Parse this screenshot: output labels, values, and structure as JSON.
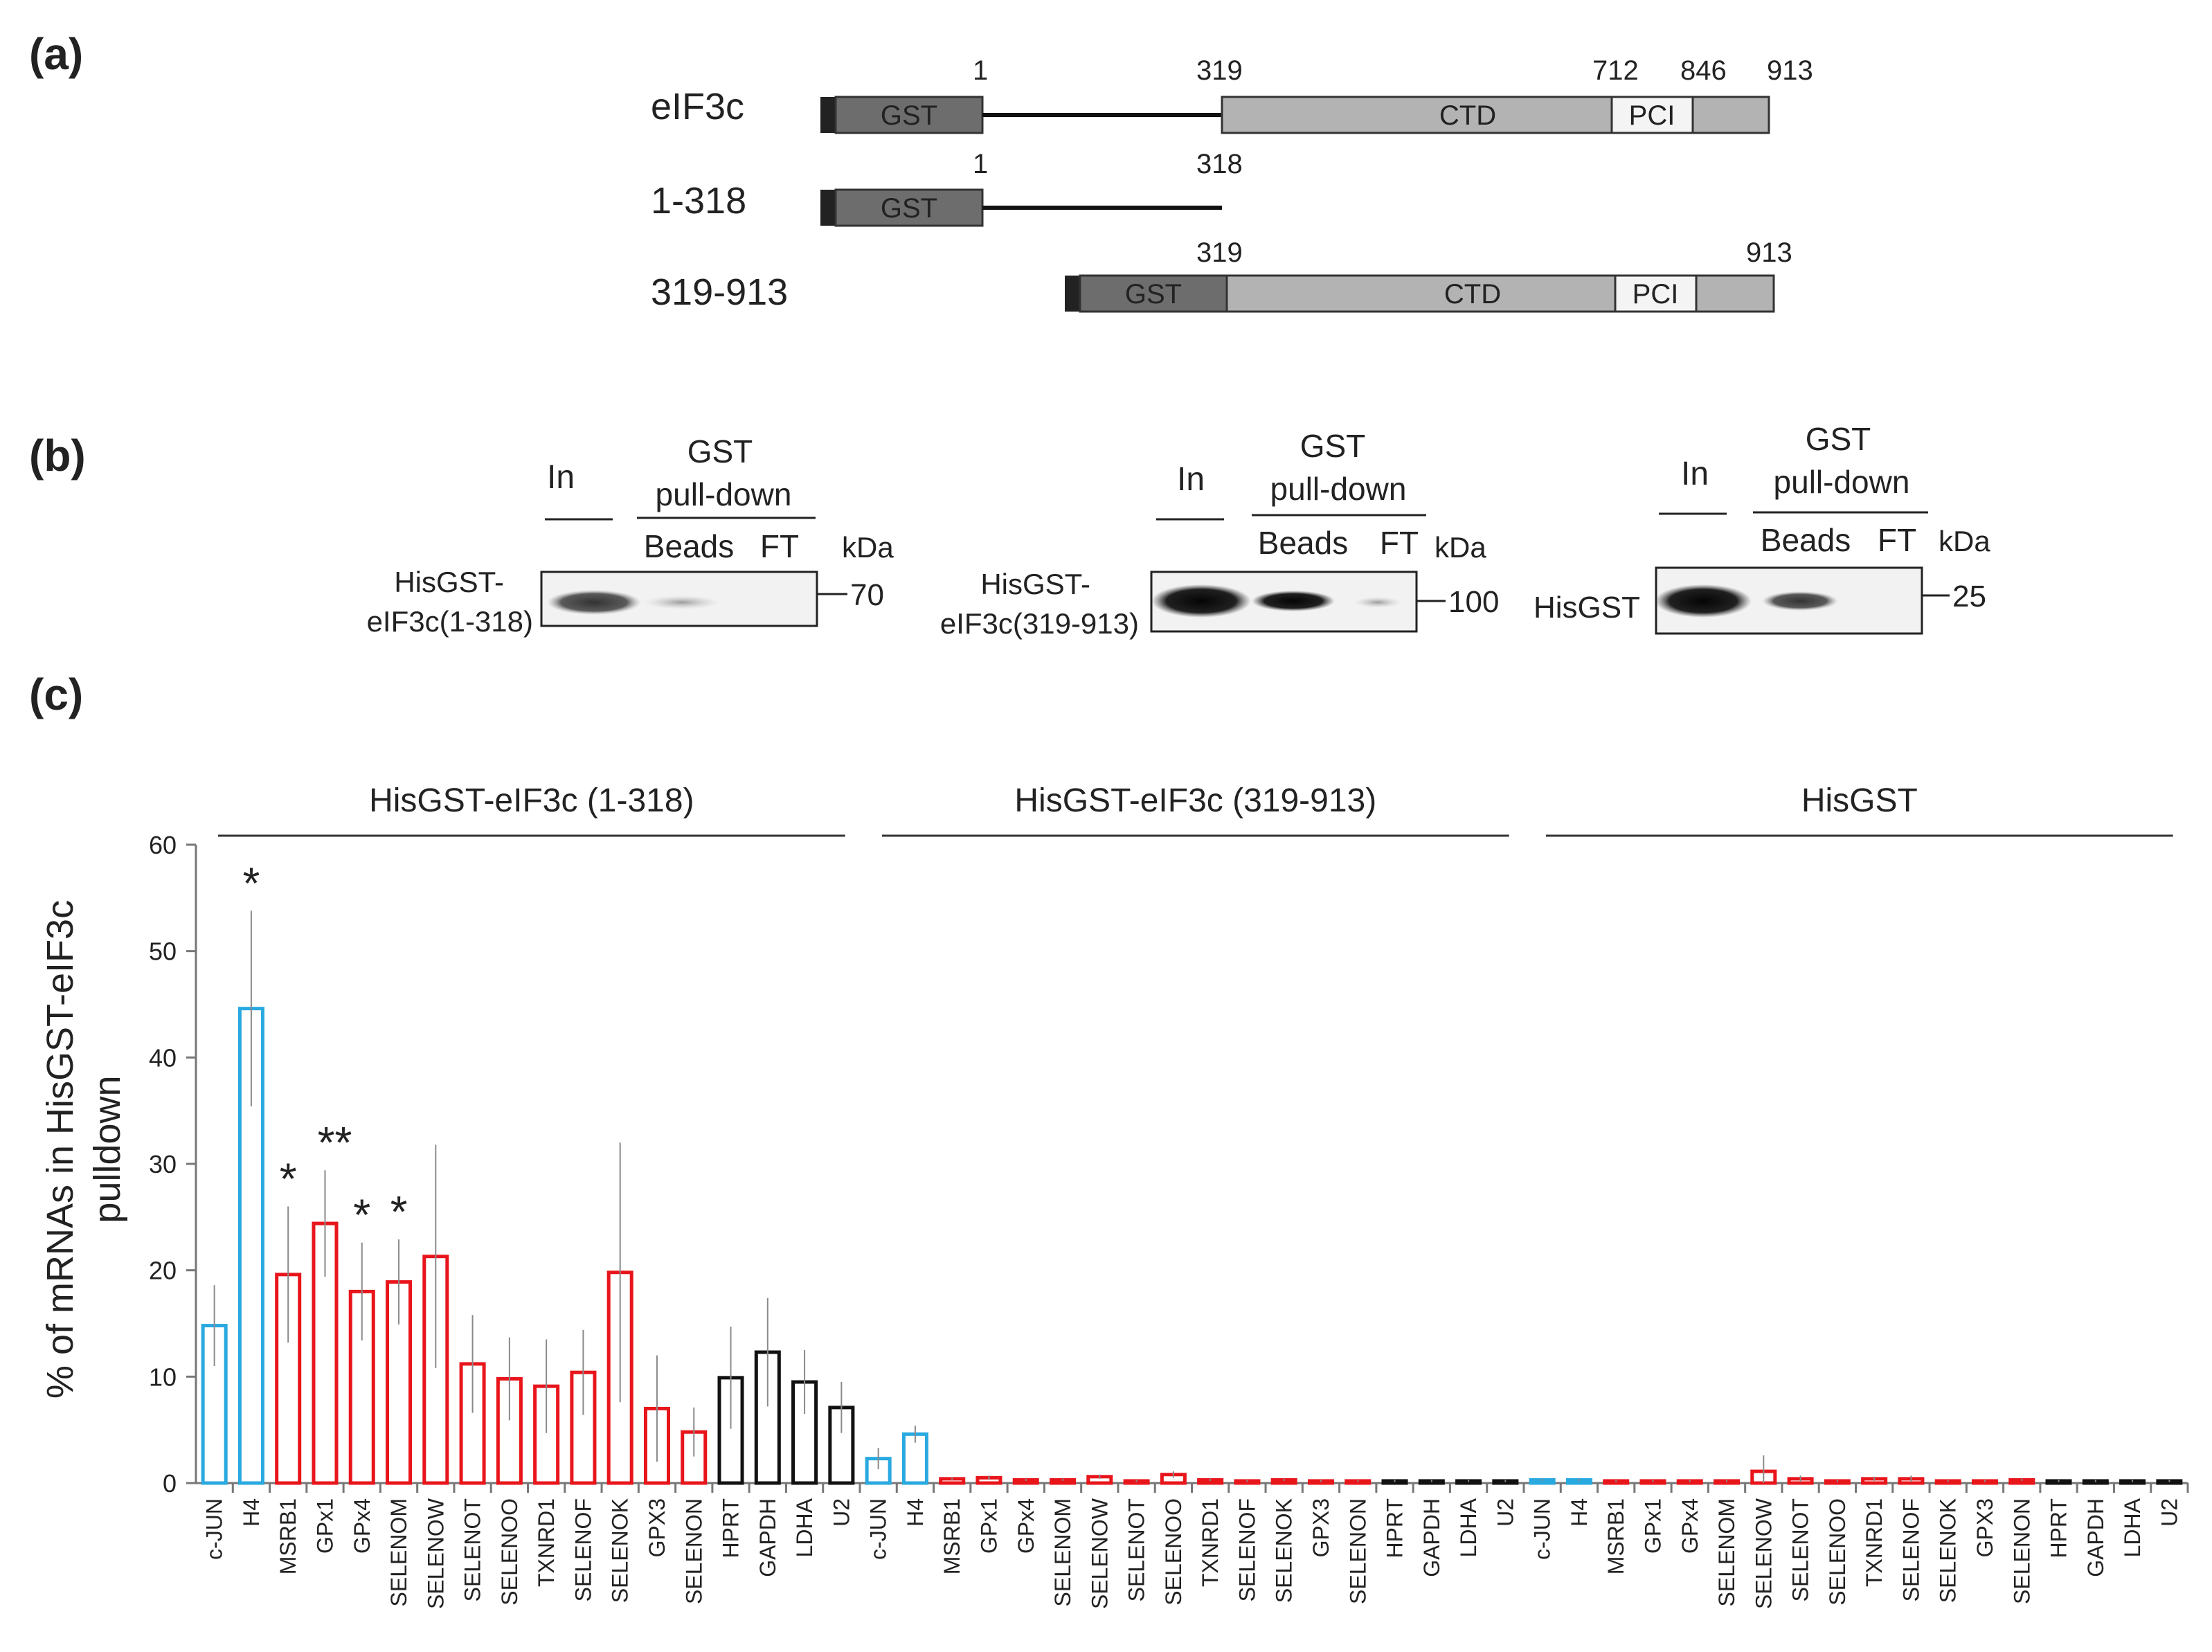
{
  "panels": {
    "a": "(a)",
    "b": "(b)",
    "c": "(c)"
  },
  "panel_a": {
    "constructs": [
      {
        "name": "eIF3c",
        "positions": [
          "1",
          "319",
          "712",
          "846",
          "913"
        ],
        "domains": [
          "GST",
          "CTD",
          "PCI"
        ]
      },
      {
        "name": "1-318",
        "positions": [
          "1",
          "318"
        ],
        "domains": [
          "GST"
        ]
      },
      {
        "name": "319-913",
        "positions": [
          "319",
          "913"
        ],
        "domains": [
          "GST",
          "CTD",
          "PCI"
        ]
      }
    ]
  },
  "panel_b": {
    "kda_label": "kDa",
    "blots": [
      {
        "protein_line1": "HisGST-",
        "protein_line2": "eIF3c(1-318)",
        "input_label": "In",
        "pulldown_line1": "GST",
        "pulldown_line2": "pull-down",
        "beads_label": "Beads",
        "ft_label": "FT",
        "marker": "70"
      },
      {
        "protein_line1": "HisGST-",
        "protein_line2": "eIF3c(319-913)",
        "input_label": "In",
        "pulldown_line1": "GST",
        "pulldown_line2": "pull-down",
        "beads_label": "Beads",
        "ft_label": "FT",
        "marker": "100"
      },
      {
        "protein_line1": "HisGST",
        "protein_line2": "",
        "input_label": "In",
        "pulldown_line1": "GST",
        "pulldown_line2": "pull-down",
        "beads_label": "Beads",
        "ft_label": "FT",
        "marker": "25"
      }
    ]
  },
  "chart_data": {
    "type": "bar",
    "ylabel_line1": "% of mRNAs in HisGST-eIF3c",
    "ylabel_line2": "pulldown",
    "ylim": [
      0,
      60
    ],
    "yticks": [
      0,
      10,
      20,
      30,
      40,
      50,
      60
    ],
    "colors": {
      "control": "#29a9e0",
      "selenoprotein": "#e8151b",
      "reference": "#111111"
    },
    "groups": [
      {
        "name": "HisGST-eIF3c (1-318)",
        "categories": [
          "c-JUN",
          "H4",
          "MSRB1",
          "GPx1",
          "GPx4",
          "SELENOM",
          "SELENOW",
          "SELENOT",
          "SELENOO",
          "TXNRD1",
          "SELENOF",
          "SELENOK",
          "GPX3",
          "SELENON",
          "HPRT",
          "GAPDH",
          "LDHA",
          "U2"
        ],
        "values": [
          14.8,
          44.6,
          19.6,
          24.4,
          18.0,
          18.9,
          21.3,
          11.2,
          9.8,
          9.1,
          10.4,
          19.8,
          7.0,
          4.8,
          9.9,
          12.3,
          9.5,
          7.1
        ],
        "errors": [
          3.8,
          9.2,
          6.4,
          5.0,
          4.6,
          4.0,
          10.5,
          4.6,
          3.9,
          4.4,
          4.0,
          12.2,
          5.0,
          2.3,
          4.8,
          5.1,
          3.0,
          2.4
        ],
        "classes": [
          "control",
          "control",
          "selenoprotein",
          "selenoprotein",
          "selenoprotein",
          "selenoprotein",
          "selenoprotein",
          "selenoprotein",
          "selenoprotein",
          "selenoprotein",
          "selenoprotein",
          "selenoprotein",
          "selenoprotein",
          "selenoprotein",
          "reference",
          "reference",
          "reference",
          "reference"
        ],
        "significance": [
          "",
          "*",
          "*",
          "**",
          "*",
          "*",
          "",
          "",
          "",
          "",
          "",
          "",
          "",
          "",
          "",
          "",
          "",
          ""
        ]
      },
      {
        "name": "HisGST-eIF3c (319-913)",
        "categories": [
          "c-JUN",
          "H4",
          "MSRB1",
          "GPx1",
          "GPx4",
          "SELENOM",
          "SELENOW",
          "SELENOT",
          "SELENOO",
          "TXNRD1",
          "SELENOF",
          "SELENOK",
          "GPX3",
          "SELENON",
          "HPRT",
          "GAPDH",
          "LDHA",
          "U2"
        ],
        "values": [
          2.3,
          4.6,
          0.4,
          0.5,
          0.3,
          0.3,
          0.6,
          0.2,
          0.8,
          0.3,
          0.2,
          0.3,
          0.2,
          0.2,
          0.2,
          0.2,
          0.2,
          0.2
        ],
        "errors": [
          1.0,
          0.8,
          0.1,
          0.2,
          0.1,
          0.1,
          0.2,
          0.1,
          0.3,
          0.1,
          0.1,
          0.1,
          0.1,
          0.1,
          0.1,
          0.1,
          0.1,
          0.1
        ],
        "classes": [
          "control",
          "control",
          "selenoprotein",
          "selenoprotein",
          "selenoprotein",
          "selenoprotein",
          "selenoprotein",
          "selenoprotein",
          "selenoprotein",
          "selenoprotein",
          "selenoprotein",
          "selenoprotein",
          "selenoprotein",
          "selenoprotein",
          "reference",
          "reference",
          "reference",
          "reference"
        ],
        "significance": [
          "",
          "",
          "",
          "",
          "",
          "",
          "",
          "",
          "",
          "",
          "",
          "",
          "",
          "",
          "",
          "",
          "",
          ""
        ]
      },
      {
        "name": "HisGST",
        "categories": [
          "c-JUN",
          "H4",
          "MSRB1",
          "GPx1",
          "GPx4",
          "SELENOM",
          "SELENOW",
          "SELENOT",
          "SELENOO",
          "TXNRD1",
          "SELENOF",
          "SELENOK",
          "GPX3",
          "SELENON",
          "HPRT",
          "GAPDH",
          "LDHA",
          "U2"
        ],
        "values": [
          0.3,
          0.3,
          0.2,
          0.2,
          0.2,
          0.2,
          1.1,
          0.4,
          0.2,
          0.4,
          0.4,
          0.2,
          0.2,
          0.3,
          0.2,
          0.2,
          0.2,
          0.2
        ],
        "errors": [
          0.1,
          0.1,
          0.1,
          0.1,
          0.1,
          0.1,
          1.5,
          0.3,
          0.1,
          0.2,
          0.3,
          0.1,
          0.1,
          0.1,
          0.1,
          0.1,
          0.1,
          0.1
        ],
        "classes": [
          "control",
          "control",
          "selenoprotein",
          "selenoprotein",
          "selenoprotein",
          "selenoprotein",
          "selenoprotein",
          "selenoprotein",
          "selenoprotein",
          "selenoprotein",
          "selenoprotein",
          "selenoprotein",
          "selenoprotein",
          "selenoprotein",
          "reference",
          "reference",
          "reference",
          "reference"
        ],
        "significance": [
          "",
          "",
          "",
          "",
          "",
          "",
          "",
          "",
          "",
          "",
          "",
          "",
          "",
          "",
          "",
          "",
          "",
          ""
        ]
      }
    ]
  }
}
